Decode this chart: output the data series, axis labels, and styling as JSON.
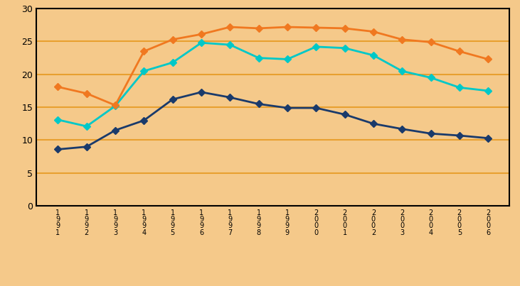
{
  "years": [
    1991,
    1992,
    1993,
    1994,
    1995,
    1996,
    1997,
    1998,
    1999,
    2000,
    2001,
    2002,
    2003,
    2004,
    2005,
    2006
  ],
  "grade8": [
    8.6,
    9.0,
    11.5,
    13.0,
    16.2,
    17.3,
    16.5,
    15.5,
    14.9,
    14.9,
    13.9,
    12.5,
    11.7,
    11.0,
    10.7,
    10.3
  ],
  "grade10": [
    13.1,
    12.1,
    15.2,
    20.5,
    21.8,
    24.8,
    24.5,
    22.5,
    22.3,
    24.2,
    24.0,
    22.9,
    20.5,
    19.5,
    18.0,
    17.5
  ],
  "grade12": [
    18.1,
    17.1,
    15.3,
    23.5,
    25.3,
    26.1,
    27.2,
    27.0,
    27.2,
    27.1,
    27.0,
    26.5,
    25.3,
    24.9,
    23.5,
    22.3
  ],
  "color_8th": "#1a3a6b",
  "color_10th": "#00c8c8",
  "color_12th": "#f07820",
  "bg_color": "#f5c98a",
  "grid_color": "#e8a030",
  "ylim": [
    0,
    30
  ],
  "yticks": [
    0,
    5,
    10,
    15,
    20,
    25,
    30
  ],
  "xtick_labels": [
    "1\n9\n9\n1",
    "1\n9\n9\n2",
    "1\n9\n9\n3",
    "1\n9\n9\n4",
    "1\n9\n9\n5",
    "1\n9\n9\n6",
    "1\n9\n9\n7",
    "1\n9\n9\n8",
    "1\n9\n9\n9",
    "2\n0\n0\n0",
    "2\n0\n0\n1",
    "2\n0\n0\n2",
    "2\n0\n0\n3",
    "2\n0\n0\n4",
    "2\n0\n0\n5",
    "2\n0\n0\n6"
  ]
}
